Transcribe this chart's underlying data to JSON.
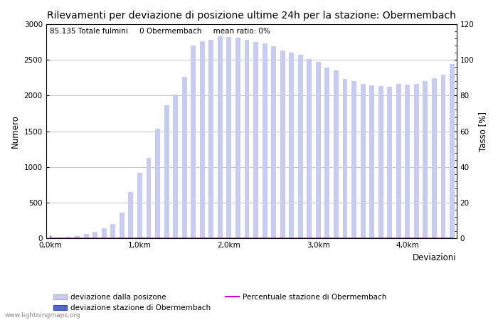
{
  "title": "Rilevamenti per deviazione di posizione ultime 24h per la stazione: Obermembach",
  "subtitle": "85.135 Totale fulmini     0 Obermembach     mean ratio: 0%",
  "ylabel_left": "Numero",
  "ylabel_right": "Tasso [%]",
  "xlabel": "Deviazioni",
  "ylim_left": [
    0,
    3000
  ],
  "ylim_right": [
    0,
    120
  ],
  "yticks_left": [
    0,
    500,
    1000,
    1500,
    2000,
    2500,
    3000
  ],
  "yticks_right": [
    0,
    20,
    40,
    60,
    80,
    100,
    120
  ],
  "xtick_labels": [
    "0,0km",
    "1,0km",
    "2,0km",
    "3,0km",
    "4,0km"
  ],
  "xtick_positions": [
    0,
    10,
    20,
    30,
    40
  ],
  "bar_color_main": "#c8ccee",
  "bar_color_station": "#5566cc",
  "line_color": "#cc00cc",
  "background_color": "#ffffff",
  "grid_color": "#999999",
  "watermark": "www.lightningmaps.org",
  "legend_label1": "deviazione dalla posizone",
  "legend_label2": "deviazione stazione di Obermembach",
  "legend_label3": "Percentuale stazione di Obermembach",
  "n_bars": 46,
  "bar_values": [
    5,
    8,
    18,
    30,
    55,
    90,
    140,
    200,
    360,
    650,
    920,
    1130,
    1540,
    1860,
    2010,
    2260,
    2700,
    2760,
    2780,
    2830,
    2820,
    2810,
    2780,
    2750,
    2730,
    2690,
    2630,
    2600,
    2570,
    2510,
    2470,
    2390,
    2350,
    2230,
    2200,
    2160,
    2140,
    2130,
    2120,
    2160,
    2150,
    2160,
    2200,
    2240,
    2290,
    2440
  ],
  "station_bar_values": [
    0,
    0,
    0,
    0,
    0,
    0,
    0,
    0,
    0,
    0,
    0,
    0,
    0,
    0,
    0,
    0,
    0,
    0,
    0,
    0,
    0,
    0,
    0,
    0,
    0,
    0,
    0,
    0,
    0,
    0,
    0,
    0,
    0,
    0,
    0,
    0,
    0,
    0,
    0,
    0,
    0,
    0,
    0,
    0,
    0,
    0
  ],
  "percentage_values": [
    0,
    0,
    0,
    0,
    0,
    0,
    0,
    0,
    0,
    0,
    0,
    0,
    0,
    0,
    0,
    0,
    0,
    0,
    0,
    0,
    0,
    0,
    0,
    0,
    0,
    0,
    0,
    0,
    0,
    0,
    0,
    0,
    0,
    0,
    0,
    0,
    0,
    0,
    0,
    0,
    0,
    0,
    0,
    0,
    0,
    0
  ],
  "title_fontsize": 10,
  "subtitle_fontsize": 7.5,
  "tick_fontsize": 7.5,
  "label_fontsize": 8.5
}
